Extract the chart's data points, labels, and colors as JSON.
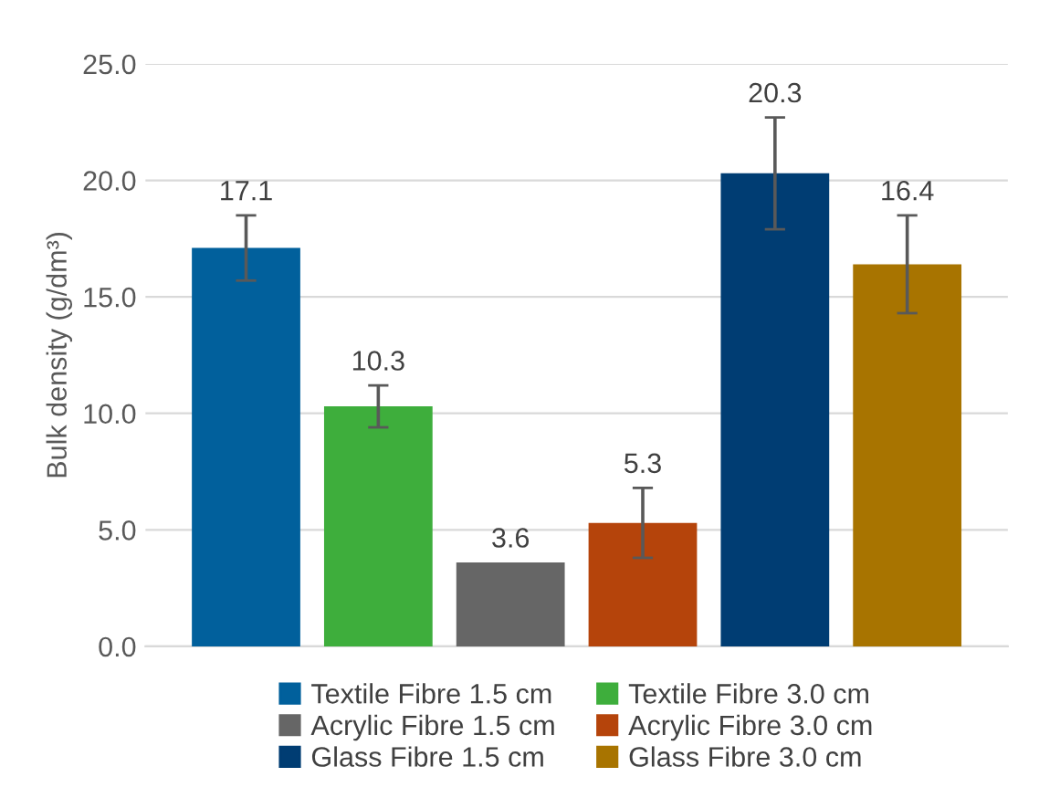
{
  "chart_data": {
    "type": "bar",
    "ylabel": "Bulk density (g/dm³)",
    "categories": [
      null
    ],
    "series": [
      {
        "name": "Textile Fibre 1.5 cm",
        "color": "#01609c",
        "values": [
          17.1
        ],
        "errors": [
          1.4
        ]
      },
      {
        "name": "Textile Fibre 3.0 cm",
        "color": "#3eae3c",
        "values": [
          10.3
        ],
        "errors": [
          0.9
        ]
      },
      {
        "name": "Acrylic Fibre 1.5 cm",
        "color": "#666666",
        "values": [
          3.6
        ],
        "errors": [
          null
        ]
      },
      {
        "name": "Acrylic Fibre 3.0 cm",
        "color": "#b5440b",
        "values": [
          5.3
        ],
        "errors": [
          1.5
        ]
      },
      {
        "name": "Glass Fibre 1.5 cm",
        "color": "#003d73",
        "values": [
          20.3
        ],
        "errors": [
          2.4
        ]
      },
      {
        "name": "Glass Fibre 3.0 cm",
        "color": "#a87400",
        "values": [
          16.4
        ],
        "errors": [
          2.1
        ]
      }
    ],
    "ylim": [
      0,
      25
    ],
    "yticks": [
      {
        "value": 0,
        "label": "0.0"
      },
      {
        "value": 5,
        "label": "5.0"
      },
      {
        "value": 10,
        "label": "10.0"
      },
      {
        "value": 15,
        "label": "15.0"
      },
      {
        "value": 20,
        "label": "20.0"
      },
      {
        "value": 25,
        "label": "25.0"
      }
    ],
    "grid": "y",
    "legend": "bottom",
    "tick_labels": "y",
    "data_labels": true
  }
}
